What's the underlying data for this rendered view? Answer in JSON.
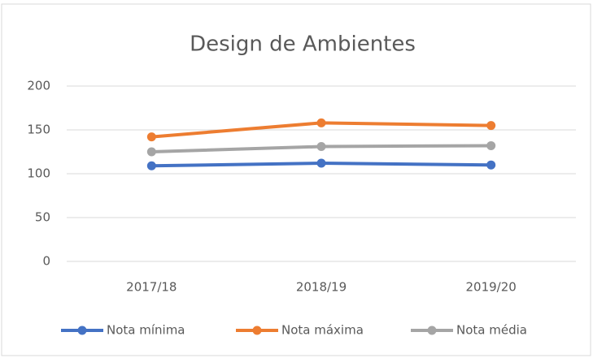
{
  "chart_data": {
    "type": "line",
    "title": "Design de Ambientes",
    "categories": [
      "2017/18",
      "2018/19",
      "2019/20"
    ],
    "series": [
      {
        "name": "Nota mínima",
        "color": "#4472c4",
        "values": [
          109,
          112,
          110
        ]
      },
      {
        "name": "Nota máxima",
        "color": "#ed7d31",
        "values": [
          142,
          158,
          155
        ]
      },
      {
        "name": "Nota média",
        "color": "#a5a5a5",
        "values": [
          125,
          131,
          132
        ]
      }
    ],
    "ylim": [
      0,
      200
    ],
    "yticks": [
      0,
      50,
      100,
      150,
      200
    ],
    "grid": true,
    "legend": "bottom"
  }
}
